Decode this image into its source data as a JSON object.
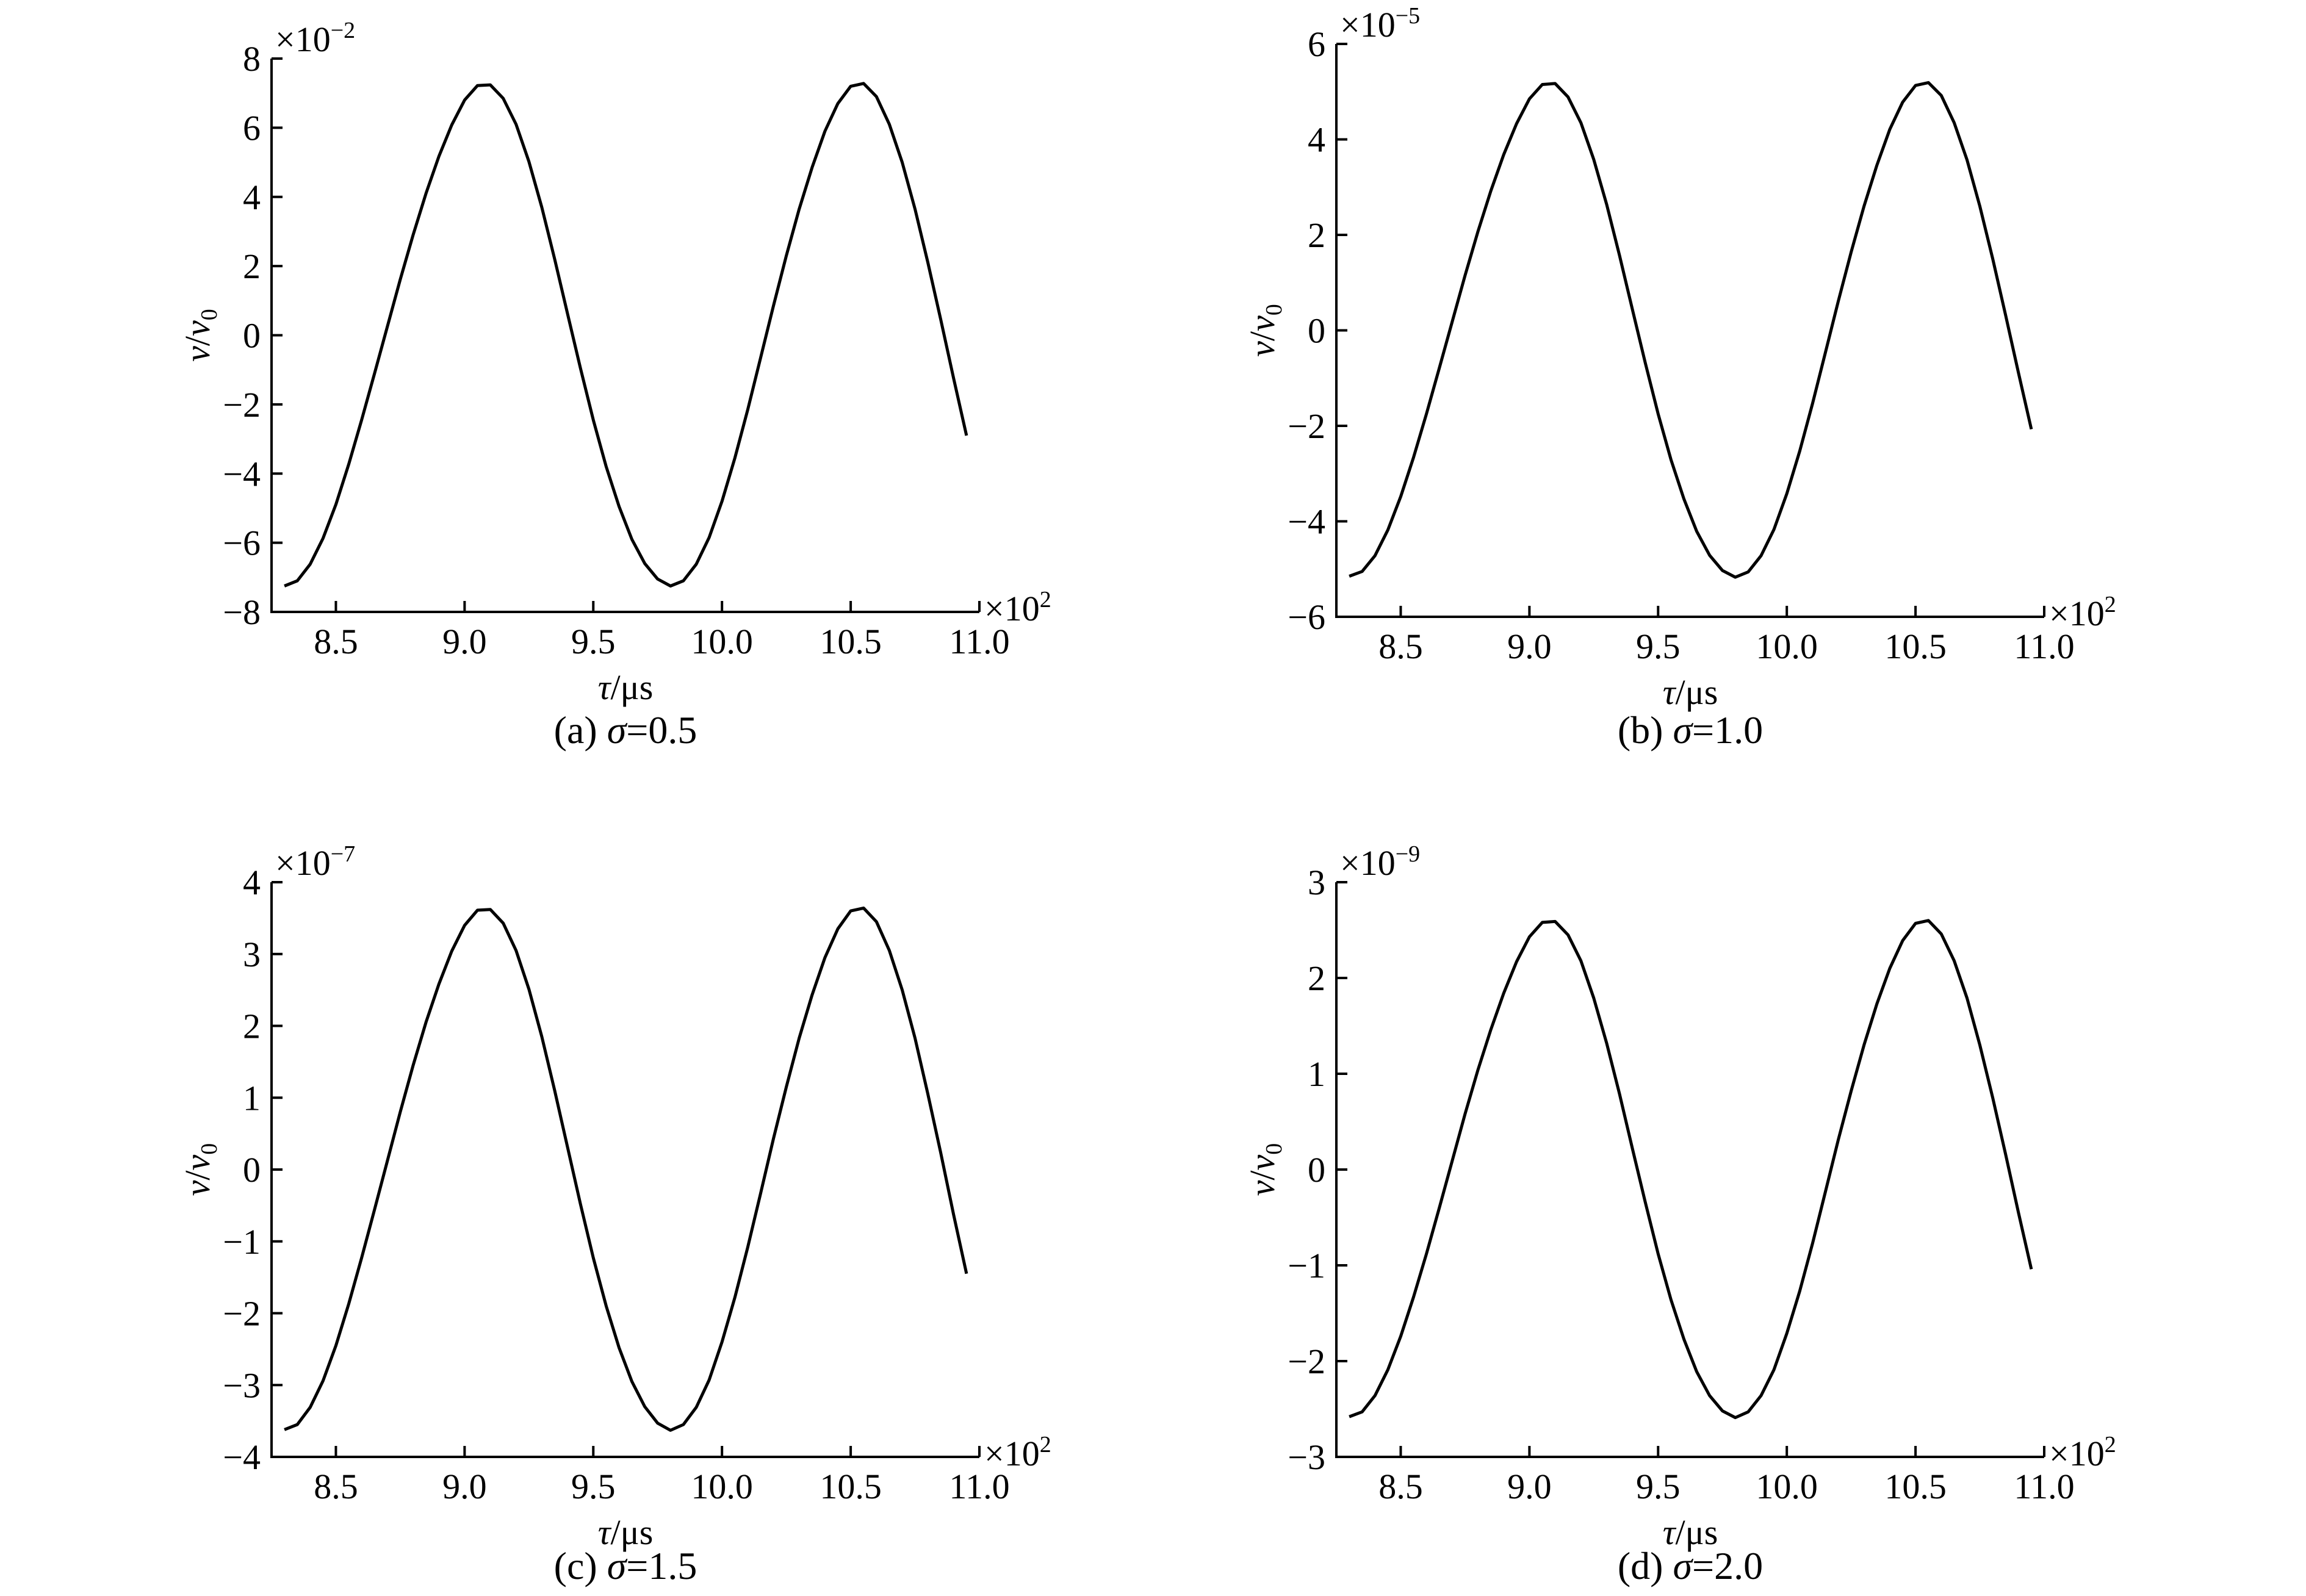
{
  "chart_data": [
    {
      "type": "line",
      "caption": "(a) σ=0.5",
      "caption_prefix": "(a) ",
      "caption_var": "σ",
      "caption_value": "=0.5",
      "ylabel_main": "v",
      "ylabel_sep": "/",
      "ylabel_ref": "v",
      "ylabel_sub": "0",
      "xlabel_var": "τ",
      "xlabel_unit": "/μs",
      "x_multiplier": "×10",
      "x_multiplier_exp": "2",
      "y_multiplier": "×10",
      "y_multiplier_exp": "−2",
      "xlim": [
        8.25,
        11.0
      ],
      "ylim": [
        -8,
        8
      ],
      "x_ticks": [
        8.5,
        9.0,
        9.5,
        10.0,
        10.5,
        11.0
      ],
      "x_tick_labels": [
        "8.5",
        "9.0",
        "9.5",
        "10.0",
        "10.5",
        "11.0"
      ],
      "y_ticks": [
        -8,
        -6,
        -4,
        -2,
        0,
        2,
        4,
        6,
        8
      ],
      "y_tick_labels": [
        "−8",
        "−6",
        "−4",
        "−2",
        "0",
        "2",
        "4",
        "6",
        "8"
      ],
      "grid": false,
      "series": [
        {
          "x": [
            8.3,
            8.35,
            8.4,
            8.45,
            8.5,
            8.55,
            8.6,
            8.65,
            8.7,
            8.75,
            8.8,
            8.85,
            8.9,
            8.95,
            9.0,
            9.05,
            9.1,
            9.15,
            9.2,
            9.25,
            9.3,
            9.35,
            9.4,
            9.45,
            9.5,
            9.55,
            9.6,
            9.65,
            9.7,
            9.75,
            9.8,
            9.85,
            9.9,
            9.95,
            10.0,
            10.05,
            10.1,
            10.15,
            10.2,
            10.25,
            10.3,
            10.35,
            10.4,
            10.45,
            10.5,
            10.55,
            10.6,
            10.65,
            10.7,
            10.75,
            10.8,
            10.85,
            10.9,
            10.95
          ],
          "y": [
            -7.25,
            -7.1,
            -6.62,
            -5.87,
            -4.89,
            -3.73,
            -2.45,
            -1.11,
            0.25,
            1.61,
            2.9,
            4.1,
            5.17,
            6.08,
            6.8,
            7.22,
            7.24,
            6.85,
            6.1,
            5.02,
            3.7,
            2.2,
            0.62,
            -0.95,
            -2.45,
            -3.8,
            -4.95,
            -5.9,
            -6.6,
            -7.05,
            -7.25,
            -7.1,
            -6.62,
            -5.85,
            -4.8,
            -3.55,
            -2.15,
            -0.65,
            0.85,
            2.3,
            3.65,
            4.85,
            5.9,
            6.7,
            7.2,
            7.28,
            6.9,
            6.1,
            5.0,
            3.65,
            2.1,
            0.45,
            -1.25,
            -2.9
          ]
        }
      ]
    },
    {
      "type": "line",
      "caption": "(b) σ=1.0",
      "caption_prefix": "(b) ",
      "caption_var": "σ",
      "caption_value": "=1.0",
      "ylabel_main": "v",
      "ylabel_sep": "/",
      "ylabel_ref": "v",
      "ylabel_sub": "0",
      "xlabel_var": "τ",
      "xlabel_unit": "/μs",
      "x_multiplier": "×10",
      "x_multiplier_exp": "2",
      "y_multiplier": "×10",
      "y_multiplier_exp": "−5",
      "xlim": [
        8.25,
        11.0
      ],
      "ylim": [
        -6,
        6
      ],
      "x_ticks": [
        8.5,
        9.0,
        9.5,
        10.0,
        10.5,
        11.0
      ],
      "x_tick_labels": [
        "8.5",
        "9.0",
        "9.5",
        "10.0",
        "10.5",
        "11.0"
      ],
      "y_ticks": [
        -6,
        -4,
        -2,
        0,
        2,
        4,
        6
      ],
      "y_tick_labels": [
        "−6",
        "−4",
        "−2",
        "0",
        "2",
        "4",
        "6"
      ],
      "grid": false,
      "series": [
        {
          "x": [
            8.3,
            8.35,
            8.4,
            8.45,
            8.5,
            8.55,
            8.6,
            8.65,
            8.7,
            8.75,
            8.8,
            8.85,
            8.9,
            8.95,
            9.0,
            9.05,
            9.1,
            9.15,
            9.2,
            9.25,
            9.3,
            9.35,
            9.4,
            9.45,
            9.5,
            9.55,
            9.6,
            9.65,
            9.7,
            9.75,
            9.8,
            9.85,
            9.9,
            9.95,
            10.0,
            10.05,
            10.1,
            10.15,
            10.2,
            10.25,
            10.3,
            10.35,
            10.4,
            10.45,
            10.5,
            10.55,
            10.6,
            10.65,
            10.7,
            10.75,
            10.8,
            10.85,
            10.9,
            10.95
          ],
          "y": [
            -5.15,
            -5.05,
            -4.72,
            -4.18,
            -3.48,
            -2.66,
            -1.75,
            -0.79,
            0.18,
            1.15,
            2.07,
            2.92,
            3.68,
            4.33,
            4.85,
            5.15,
            5.17,
            4.89,
            4.35,
            3.58,
            2.64,
            1.57,
            0.44,
            -0.68,
            -1.75,
            -2.71,
            -3.53,
            -4.21,
            -4.71,
            -5.03,
            -5.17,
            -5.06,
            -4.72,
            -4.17,
            -3.42,
            -2.53,
            -1.53,
            -0.46,
            0.61,
            1.64,
            2.6,
            3.46,
            4.21,
            4.78,
            5.13,
            5.19,
            4.92,
            4.35,
            3.57,
            2.6,
            1.5,
            0.32,
            -0.89,
            -2.07
          ]
        }
      ]
    },
    {
      "type": "line",
      "caption": "(c) σ=1.5",
      "caption_prefix": "(c) ",
      "caption_var": "σ",
      "caption_value": "=1.5",
      "ylabel_main": "v",
      "ylabel_sep": "/",
      "ylabel_ref": "v",
      "ylabel_sub": "0",
      "xlabel_var": "τ",
      "xlabel_unit": "/μs",
      "x_multiplier": "×10",
      "x_multiplier_exp": "2",
      "y_multiplier": "×10",
      "y_multiplier_exp": "−7",
      "xlim": [
        8.25,
        11.0
      ],
      "ylim": [
        -4,
        4
      ],
      "x_ticks": [
        8.5,
        9.0,
        9.5,
        10.0,
        10.5,
        11.0
      ],
      "x_tick_labels": [
        "8.5",
        "9.0",
        "9.5",
        "10.0",
        "10.5",
        "11.0"
      ],
      "y_ticks": [
        -4,
        -3,
        -2,
        -1,
        0,
        1,
        2,
        3,
        4
      ],
      "y_tick_labels": [
        "−4",
        "−3",
        "−2",
        "−1",
        "0",
        "1",
        "2",
        "3",
        "4"
      ],
      "grid": false,
      "series": [
        {
          "x": [
            8.3,
            8.35,
            8.4,
            8.45,
            8.5,
            8.55,
            8.6,
            8.65,
            8.7,
            8.75,
            8.8,
            8.85,
            8.9,
            8.95,
            9.0,
            9.05,
            9.1,
            9.15,
            9.2,
            9.25,
            9.3,
            9.35,
            9.4,
            9.45,
            9.5,
            9.55,
            9.6,
            9.65,
            9.7,
            9.75,
            9.8,
            9.85,
            9.9,
            9.95,
            10.0,
            10.05,
            10.1,
            10.15,
            10.2,
            10.25,
            10.3,
            10.35,
            10.4,
            10.45,
            10.5,
            10.55,
            10.6,
            10.65,
            10.7,
            10.75,
            10.8,
            10.85,
            10.9,
            10.95
          ],
          "y": [
            -3.62,
            -3.55,
            -3.31,
            -2.94,
            -2.45,
            -1.87,
            -1.23,
            -0.56,
            0.12,
            0.8,
            1.45,
            2.05,
            2.58,
            3.04,
            3.4,
            3.61,
            3.62,
            3.43,
            3.05,
            2.51,
            1.85,
            1.1,
            0.31,
            -0.48,
            -1.23,
            -1.9,
            -2.48,
            -2.95,
            -3.3,
            -3.53,
            -3.63,
            -3.55,
            -3.31,
            -2.93,
            -2.4,
            -1.78,
            -1.08,
            -0.33,
            0.43,
            1.15,
            1.83,
            2.43,
            2.95,
            3.35,
            3.6,
            3.64,
            3.45,
            3.05,
            2.5,
            1.83,
            1.05,
            0.23,
            -0.63,
            -1.45
          ]
        }
      ]
    },
    {
      "type": "line",
      "caption": "(d) σ=2.0",
      "caption_prefix": "(d) ",
      "caption_var": "σ",
      "caption_value": "=2.0",
      "ylabel_main": "v",
      "ylabel_sep": "/",
      "ylabel_ref": "v",
      "ylabel_sub": "0",
      "xlabel_var": "τ",
      "xlabel_unit": "/μs",
      "x_multiplier": "×10",
      "x_multiplier_exp": "2",
      "y_multiplier": "×10",
      "y_multiplier_exp": "−9",
      "xlim": [
        8.25,
        11.0
      ],
      "ylim": [
        -3,
        3
      ],
      "x_ticks": [
        8.5,
        9.0,
        9.5,
        10.0,
        10.5,
        11.0
      ],
      "x_tick_labels": [
        "8.5",
        "9.0",
        "9.5",
        "10.0",
        "10.5",
        "11.0"
      ],
      "y_ticks": [
        -3,
        -2,
        -1,
        0,
        1,
        2,
        3
      ],
      "y_tick_labels": [
        "−3",
        "−2",
        "−1",
        "0",
        "1",
        "2",
        "3"
      ],
      "grid": false,
      "series": [
        {
          "x": [
            8.3,
            8.35,
            8.4,
            8.45,
            8.5,
            8.55,
            8.6,
            8.65,
            8.7,
            8.75,
            8.8,
            8.85,
            8.9,
            8.95,
            9.0,
            9.05,
            9.1,
            9.15,
            9.2,
            9.25,
            9.3,
            9.35,
            9.4,
            9.45,
            9.5,
            9.55,
            9.6,
            9.65,
            9.7,
            9.75,
            9.8,
            9.85,
            9.9,
            9.95,
            10.0,
            10.05,
            10.1,
            10.15,
            10.2,
            10.25,
            10.3,
            10.35,
            10.4,
            10.45,
            10.5,
            10.55,
            10.6,
            10.65,
            10.7,
            10.75,
            10.8,
            10.85,
            10.9,
            10.95
          ],
          "y": [
            -2.58,
            -2.53,
            -2.36,
            -2.09,
            -1.74,
            -1.33,
            -0.88,
            -0.4,
            0.09,
            0.58,
            1.04,
            1.46,
            1.84,
            2.17,
            2.43,
            2.58,
            2.59,
            2.45,
            2.18,
            1.79,
            1.32,
            0.79,
            0.22,
            -0.34,
            -0.88,
            -1.36,
            -1.77,
            -2.11,
            -2.36,
            -2.52,
            -2.59,
            -2.53,
            -2.36,
            -2.09,
            -1.71,
            -1.27,
            -0.77,
            -0.23,
            0.31,
            0.82,
            1.3,
            1.73,
            2.1,
            2.39,
            2.57,
            2.6,
            2.46,
            2.18,
            1.79,
            1.3,
            0.75,
            0.16,
            -0.45,
            -1.04
          ]
        }
      ]
    }
  ]
}
